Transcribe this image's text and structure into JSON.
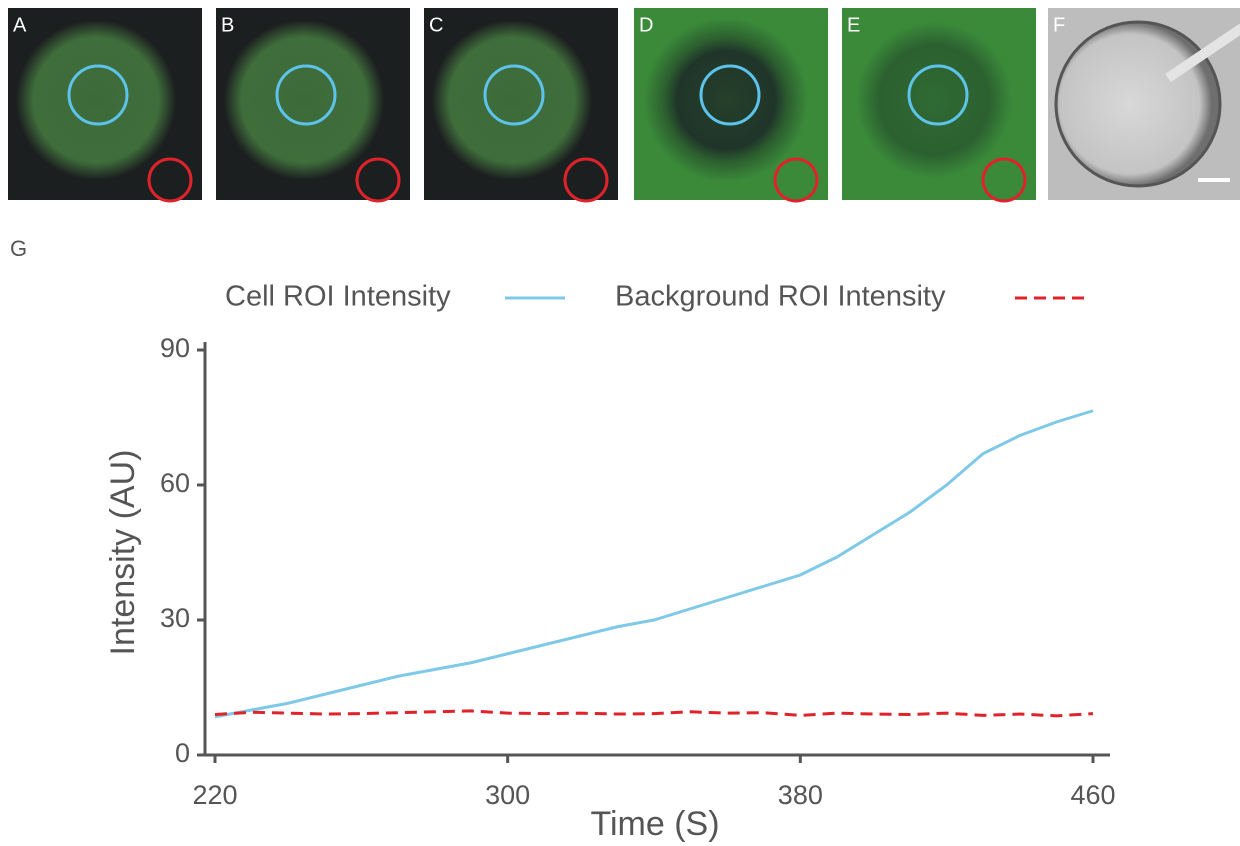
{
  "image_panels": [
    {
      "label": "A"
    },
    {
      "label": "B"
    },
    {
      "label": "C"
    },
    {
      "label": "D"
    },
    {
      "label": "E"
    },
    {
      "label": "F"
    }
  ],
  "figure_label": "G",
  "chart_data": {
    "type": "line",
    "xlabel": "Time (S)",
    "ylabel": "Intensity (AU)",
    "x": [
      220,
      230,
      240,
      250,
      260,
      270,
      280,
      290,
      300,
      310,
      320,
      330,
      340,
      350,
      360,
      370,
      380,
      390,
      400,
      410,
      420,
      430,
      440,
      450,
      460
    ],
    "series": [
      {
        "name": "Cell ROI Intensity",
        "color": "#7ec8e8",
        "style": "solid",
        "values": [
          8.5,
          10,
          11.5,
          13.5,
          15.5,
          17.5,
          19,
          20.5,
          22.5,
          24.5,
          26.5,
          28.5,
          30,
          32.5,
          35,
          37.5,
          40,
          44,
          49,
          54,
          60,
          67,
          71,
          74,
          76.5
        ]
      },
      {
        "name": "Background ROI Intensity",
        "color": "#e0232b",
        "style": "dashed",
        "values": [
          9,
          9.5,
          9.3,
          9.1,
          9.2,
          9.4,
          9.6,
          9.8,
          9.3,
          9.2,
          9.3,
          9.1,
          9.2,
          9.6,
          9.3,
          9.4,
          8.8,
          9.3,
          9.1,
          9.0,
          9.3,
          8.8,
          9.1,
          8.7,
          9.2
        ]
      }
    ],
    "xlim": [
      220,
      460
    ],
    "ylim": [
      0,
      90
    ],
    "xticks": [
      220,
      300,
      380,
      460
    ],
    "yticks": [
      0,
      30,
      60,
      90
    ],
    "legend": "top"
  }
}
